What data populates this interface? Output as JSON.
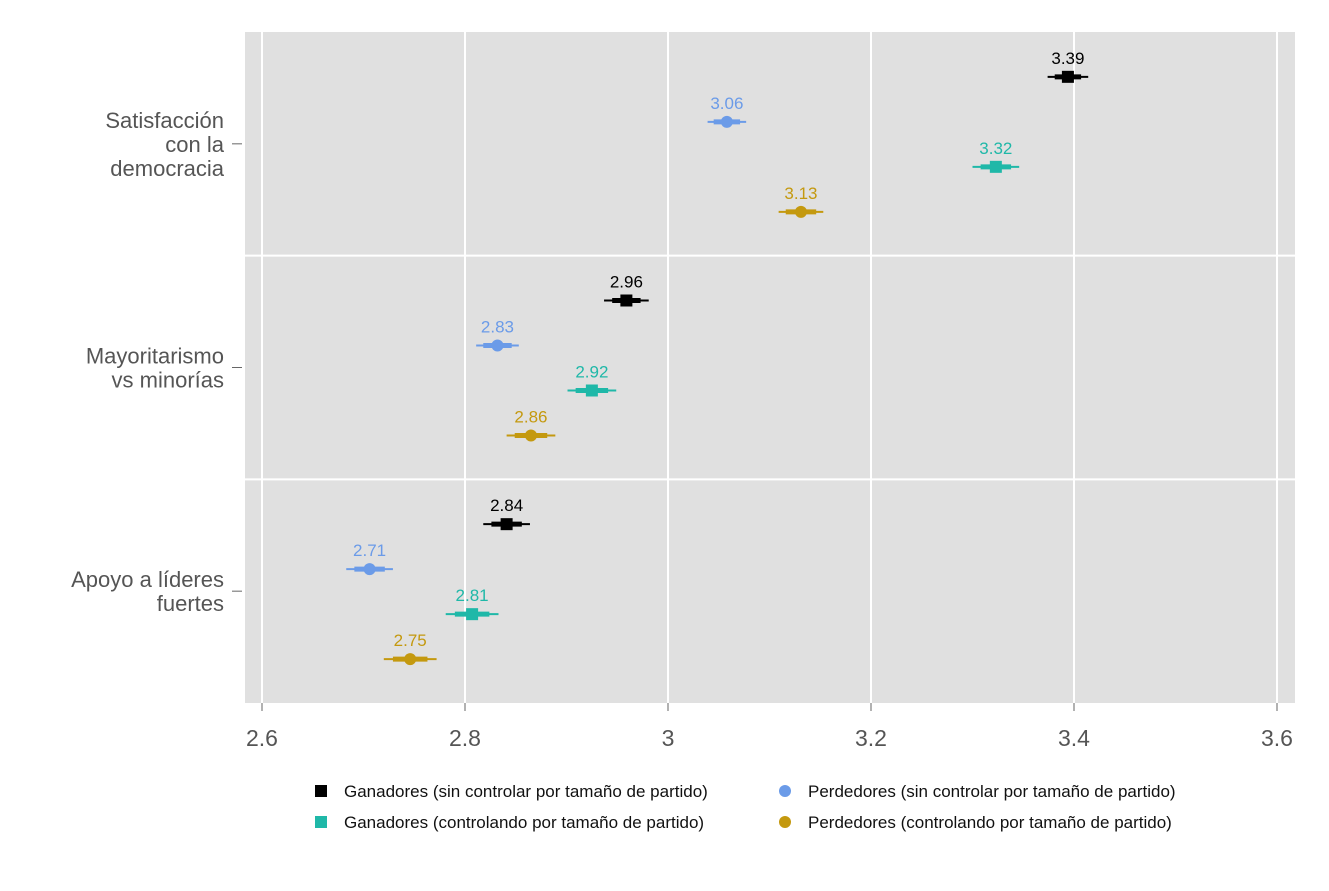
{
  "chart_data": {
    "type": "scatter",
    "title": "",
    "xlabel": "",
    "ylabel": "",
    "xlim": [
      2.583,
      3.618
    ],
    "xticks": [
      2.6,
      2.8,
      3,
      3.2,
      3.4,
      3.6
    ],
    "xtick_labels": [
      "2.6",
      "2.8",
      "3",
      "3.2",
      "3.4",
      "3.6"
    ],
    "grid": true,
    "legend_position": "bottom",
    "categories": [
      [
        "Satisfacción",
        "con la",
        "democracia"
      ],
      [
        "Mayoritarismo",
        "vs minorías"
      ],
      [
        "Apoyo a líderes",
        "fuertes"
      ]
    ],
    "series": [
      {
        "name": "Ganadores (sin controlar por tamaño de partido)",
        "marker": "square",
        "color": "#000000",
        "values": [
          3.394,
          2.959,
          2.841
        ],
        "labels": [
          "3.39",
          "2.96",
          "2.84"
        ],
        "ci95": [
          [
            3.374,
            3.414
          ],
          [
            2.937,
            2.981
          ],
          [
            2.818,
            2.864
          ]
        ],
        "ci90": [
          [
            3.381,
            3.407
          ],
          [
            2.945,
            2.973
          ],
          [
            2.826,
            2.856
          ]
        ]
      },
      {
        "name": "Perdedores (sin controlar por tamaño de partido)",
        "marker": "circle",
        "color": "#6b9be8",
        "values": [
          3.058,
          2.832,
          2.706
        ],
        "labels": [
          "3.06",
          "2.83",
          "2.71"
        ],
        "ci95": [
          [
            3.039,
            3.077
          ],
          [
            2.811,
            2.853
          ],
          [
            2.683,
            2.729
          ]
        ],
        "ci90": [
          [
            3.045,
            3.071
          ],
          [
            2.818,
            2.846
          ],
          [
            2.691,
            2.721
          ]
        ]
      },
      {
        "name": "Ganadores (controlando por tamaño de partido)",
        "marker": "square",
        "color": "#1fb8a8",
        "values": [
          3.323,
          2.925,
          2.807
        ],
        "labels": [
          "3.32",
          "2.92",
          "2.81"
        ],
        "ci95": [
          [
            3.3,
            3.346
          ],
          [
            2.901,
            2.949
          ],
          [
            2.781,
            2.833
          ]
        ],
        "ci90": [
          [
            3.308,
            3.338
          ],
          [
            2.909,
            2.941
          ],
          [
            2.79,
            2.824
          ]
        ]
      },
      {
        "name": "Perdedores (controlando por tamaño de partido)",
        "marker": "circle",
        "color": "#c4990f",
        "values": [
          3.131,
          2.865,
          2.746
        ],
        "labels": [
          "3.13",
          "2.86",
          "2.75"
        ],
        "ci95": [
          [
            3.109,
            3.153
          ],
          [
            2.841,
            2.889
          ],
          [
            2.72,
            2.772
          ]
        ],
        "ci90": [
          [
            3.116,
            3.146
          ],
          [
            2.849,
            2.881
          ],
          [
            2.729,
            2.763
          ]
        ]
      }
    ],
    "legend_order": [
      0,
      1,
      2,
      3
    ]
  }
}
